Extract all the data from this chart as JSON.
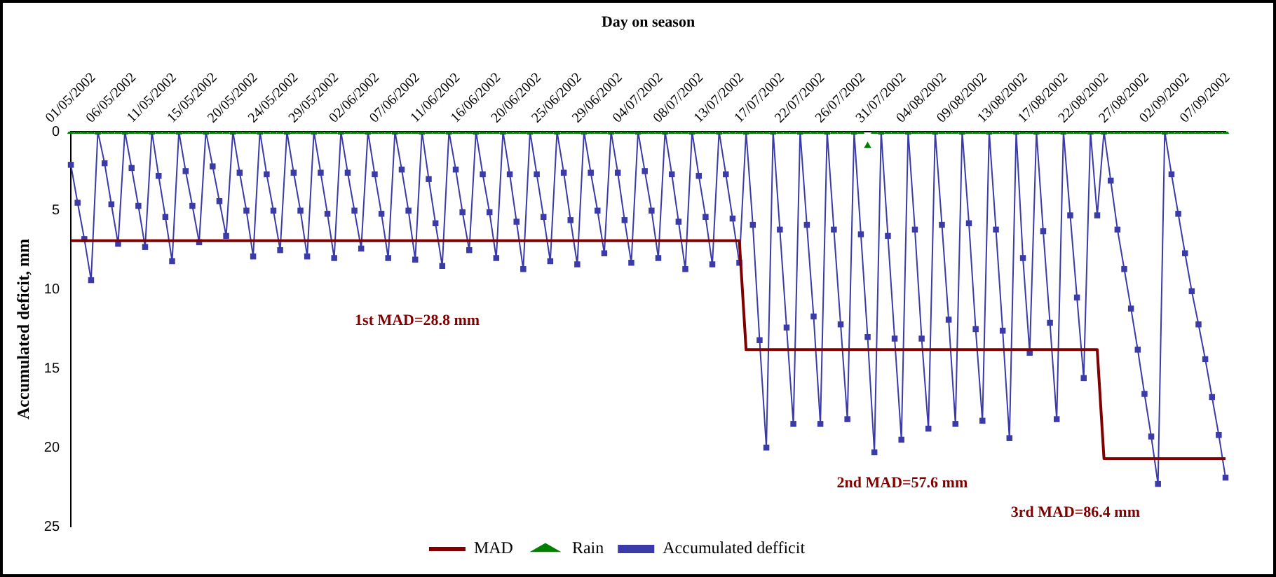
{
  "chart_data": {
    "type": "line",
    "xlabel": "Day on season",
    "ylabel": "Accumulated deficit, mm",
    "categories": [
      "01/05/2002",
      null,
      null,
      null,
      null,
      null,
      "06/05/2002",
      null,
      null,
      null,
      null,
      null,
      "11/05/2002",
      null,
      null,
      null,
      null,
      null,
      "15/05/2002",
      null,
      null,
      null,
      null,
      null,
      "20/05/2002",
      null,
      null,
      null,
      null,
      null,
      "24/05/2002",
      null,
      null,
      null,
      null,
      null,
      "29/05/2002",
      null,
      null,
      null,
      null,
      null,
      "02/06/2002",
      null,
      null,
      null,
      null,
      null,
      "07/06/2002",
      null,
      null,
      null,
      null,
      null,
      "11/06/2002",
      null,
      null,
      null,
      null,
      null,
      "16/06/2002",
      null,
      null,
      null,
      null,
      null,
      "20/06/2002",
      null,
      null,
      null,
      null,
      null,
      "25/06/2002",
      null,
      null,
      null,
      null,
      null,
      "29/06/2002",
      null,
      null,
      null,
      null,
      null,
      "04/07/2002",
      null,
      null,
      null,
      null,
      null,
      "08/07/2002",
      null,
      null,
      null,
      null,
      null,
      "13/07/2002",
      null,
      null,
      null,
      null,
      null,
      "17/07/2002",
      null,
      null,
      null,
      null,
      null,
      "22/07/2002",
      null,
      null,
      null,
      null,
      null,
      "26/07/2002",
      null,
      null,
      null,
      null,
      null,
      "31/07/2002",
      null,
      null,
      null,
      null,
      null,
      "04/08/2002",
      null,
      null,
      null,
      null,
      null,
      "09/08/2002",
      null,
      null,
      null,
      null,
      null,
      "13/08/2002",
      null,
      null,
      null,
      null,
      null,
      "17/08/2002",
      null,
      null,
      null,
      null,
      null,
      "22/08/2002",
      null,
      null,
      null,
      null,
      null,
      "27/08/2002",
      null,
      null,
      null,
      null,
      null,
      "02/09/2002",
      null,
      null,
      null,
      null,
      null,
      "07/09/2002",
      null,
      null,
      null
    ],
    "series": [
      {
        "name": "MAD",
        "color": "#800000",
        "marker": "none",
        "values": [
          6.9,
          6.9,
          6.9,
          6.9,
          6.9,
          6.9,
          6.9,
          6.9,
          6.9,
          6.9,
          6.9,
          6.9,
          6.9,
          6.9,
          6.9,
          6.9,
          6.9,
          6.9,
          6.9,
          6.9,
          6.9,
          6.9,
          6.9,
          6.9,
          6.9,
          6.9,
          6.9,
          6.9,
          6.9,
          6.9,
          6.9,
          6.9,
          6.9,
          6.9,
          6.9,
          6.9,
          6.9,
          6.9,
          6.9,
          6.9,
          6.9,
          6.9,
          6.9,
          6.9,
          6.9,
          6.9,
          6.9,
          6.9,
          6.9,
          6.9,
          6.9,
          6.9,
          6.9,
          6.9,
          6.9,
          6.9,
          6.9,
          6.9,
          6.9,
          6.9,
          6.9,
          6.9,
          6.9,
          6.9,
          6.9,
          6.9,
          6.9,
          6.9,
          6.9,
          6.9,
          6.9,
          6.9,
          6.9,
          6.9,
          6.9,
          6.9,
          6.9,
          6.9,
          6.9,
          6.9,
          6.9,
          6.9,
          6.9,
          6.9,
          6.9,
          6.9,
          6.9,
          6.9,
          6.9,
          6.9,
          6.9,
          6.9,
          6.9,
          6.9,
          6.9,
          6.9,
          6.9,
          6.9,
          6.9,
          6.9,
          13.8,
          13.8,
          13.8,
          13.8,
          13.8,
          13.8,
          13.8,
          13.8,
          13.8,
          13.8,
          13.8,
          13.8,
          13.8,
          13.8,
          13.8,
          13.8,
          13.8,
          13.8,
          13.8,
          13.8,
          13.8,
          13.8,
          13.8,
          13.8,
          13.8,
          13.8,
          13.8,
          13.8,
          13.8,
          13.8,
          13.8,
          13.8,
          13.8,
          13.8,
          13.8,
          13.8,
          13.8,
          13.8,
          13.8,
          13.8,
          13.8,
          13.8,
          13.8,
          13.8,
          13.8,
          13.8,
          13.8,
          13.8,
          13.8,
          13.8,
          13.8,
          13.8,
          13.8,
          20.7,
          20.7,
          20.7,
          20.7,
          20.7,
          20.7,
          20.7,
          20.7,
          20.7,
          20.7,
          20.7,
          20.7,
          20.7,
          20.7,
          20.7,
          20.7,
          20.7,
          20.7,
          20.7
        ]
      },
      {
        "name": "Rain",
        "type": "scatter",
        "color": "#008000",
        "marker": "triangle",
        "values": [
          0,
          0,
          0,
          0,
          0,
          0,
          0,
          0,
          0,
          0,
          0,
          0,
          0,
          0,
          0,
          0,
          0,
          0,
          0,
          0,
          0,
          0,
          0,
          0,
          0,
          0,
          0,
          0,
          0,
          0,
          0,
          0,
          0,
          0,
          0,
          0,
          0,
          0,
          0,
          0,
          0,
          0,
          0,
          0,
          0,
          0,
          0,
          0,
          0,
          0,
          0,
          0,
          0,
          0,
          0,
          0,
          0,
          0,
          0,
          0,
          0,
          0,
          0,
          0,
          0,
          0,
          0,
          0,
          0,
          0,
          0,
          0,
          0,
          0,
          0,
          0,
          0,
          0,
          0,
          0,
          0,
          0,
          0,
          0,
          0,
          0,
          0,
          0,
          0,
          0,
          0,
          0,
          0,
          0,
          0,
          0,
          0,
          0,
          0,
          0,
          0,
          0,
          0,
          0,
          0,
          0,
          0,
          0,
          0,
          0,
          0,
          0,
          0,
          0,
          0,
          0,
          0,
          0,
          0.9,
          0,
          0,
          0,
          0,
          0,
          0,
          0,
          0,
          0,
          0,
          0,
          0,
          0,
          0,
          0,
          0,
          0,
          0,
          0,
          0,
          0,
          0,
          0,
          0,
          0,
          0,
          0,
          0,
          0,
          0,
          0,
          0,
          0,
          0,
          0,
          0,
          0,
          0,
          0,
          0,
          0,
          0,
          0,
          0,
          0,
          0,
          0,
          0,
          0,
          0,
          0,
          0,
          0
        ]
      },
      {
        "name": "Accumulated defficit",
        "color": "#3a3aa8",
        "marker": "square",
        "values": [
          2.1,
          4.5,
          6.8,
          9.4,
          0,
          2.0,
          4.6,
          7.1,
          0,
          2.3,
          4.7,
          7.3,
          0,
          2.8,
          5.4,
          8.2,
          0,
          2.5,
          4.7,
          7.0,
          0,
          2.2,
          4.4,
          6.6,
          0,
          2.6,
          5.0,
          7.9,
          0,
          2.7,
          5.0,
          7.5,
          0,
          2.6,
          5.0,
          7.9,
          0,
          2.6,
          5.2,
          8.0,
          0,
          2.6,
          5.0,
          7.4,
          0,
          2.7,
          5.2,
          8.0,
          0,
          2.4,
          5.0,
          8.1,
          0,
          3.0,
          5.8,
          8.5,
          0,
          2.4,
          5.1,
          7.5,
          0,
          2.7,
          5.1,
          8.0,
          0,
          2.7,
          5.7,
          8.7,
          0,
          2.7,
          5.4,
          8.2,
          0,
          2.6,
          5.6,
          8.4,
          0,
          2.6,
          5.0,
          7.7,
          0,
          2.6,
          5.6,
          8.3,
          0,
          2.5,
          5.0,
          8.0,
          0,
          2.7,
          5.7,
          8.7,
          0,
          2.8,
          5.4,
          8.4,
          0,
          2.7,
          5.5,
          8.3,
          0,
          5.9,
          13.2,
          20.0,
          0,
          6.2,
          12.4,
          18.5,
          0,
          5.9,
          11.7,
          18.5,
          0,
          6.2,
          12.2,
          18.2,
          0,
          6.5,
          13.0,
          20.3,
          0,
          6.6,
          13.1,
          19.5,
          0,
          6.2,
          13.1,
          18.8,
          0,
          5.9,
          11.9,
          18.5,
          0,
          5.8,
          12.5,
          18.3,
          0,
          6.2,
          12.6,
          19.4,
          0,
          8.0,
          14.0,
          0,
          6.3,
          12.1,
          18.2,
          0,
          5.3,
          10.5,
          15.6,
          0,
          5.3,
          0,
          3.1,
          6.2,
          8.7,
          11.2,
          13.8,
          16.6,
          19.3,
          22.3,
          0,
          2.7,
          5.2,
          7.7,
          10.1,
          12.2,
          14.4,
          16.8,
          19.2,
          21.9
        ]
      }
    ],
    "ylim": [
      25,
      0
    ],
    "yticks": [
      0,
      5,
      10,
      15,
      20,
      25
    ],
    "grid": false,
    "legend": "bottom",
    "line_style": "solid",
    "annotations": [
      "1st MAD=28.8 mm",
      "2nd MAD=57.6 mm",
      "3rd MAD=86.4 mm"
    ]
  }
}
